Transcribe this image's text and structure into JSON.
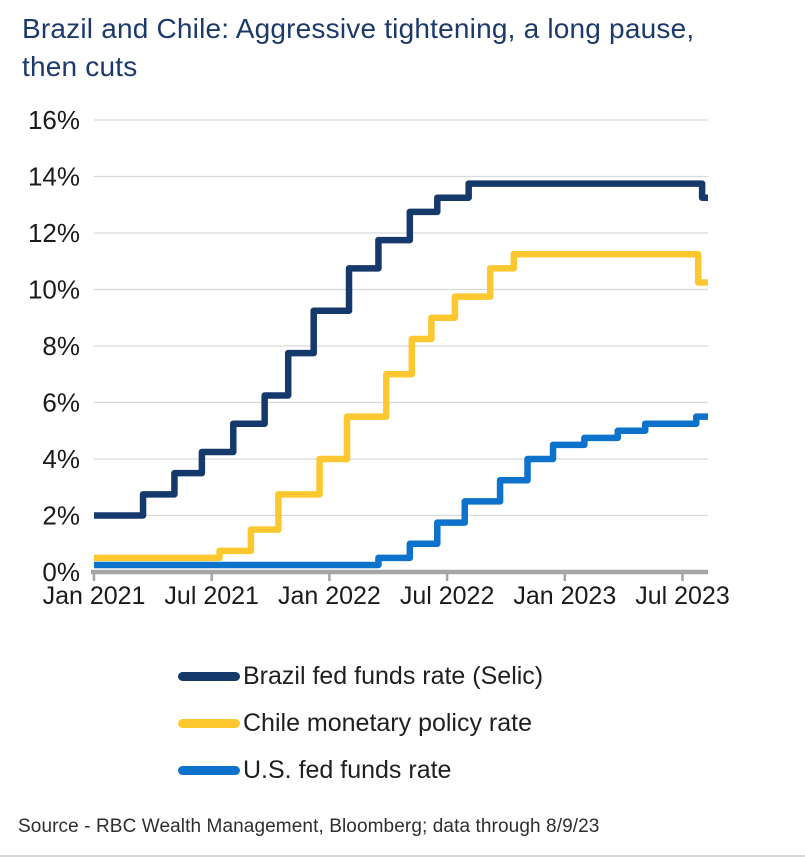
{
  "header": {
    "title_line1": "Brazil and Chile: Aggressive tightening, a long pause,",
    "title_line2": "then cuts"
  },
  "footer": {
    "source": "Source - RBC Wealth Management, Bloomberg; data through 8/9/23"
  },
  "colors": {
    "title_text": "#1B3A6B",
    "brazil_line": "#15396B",
    "chile_line": "#FDC82F",
    "us_line": "#0D72CC",
    "gridline": "#D9D9D9",
    "axis": "#A6A6A6",
    "tick_text": "#1A1A1A",
    "legend_text": "#1F1F1F",
    "source_text": "#2E2E2E"
  },
  "chart_data": {
    "type": "line",
    "line_style": "step-after",
    "title": "Brazil and Chile: Aggressive tightening, a long pause, then cuts",
    "grid": true,
    "legend_position": "bottom-left",
    "x_axis": {
      "unit": "months since Jan 2021",
      "min": 0,
      "max": 31.3,
      "ticks": [
        {
          "t": 0,
          "label": "Jan 2021"
        },
        {
          "t": 6,
          "label": "Jul 2021"
        },
        {
          "t": 12,
          "label": "Jan 2022"
        },
        {
          "t": 18,
          "label": "Jul 2022"
        },
        {
          "t": 24,
          "label": "Jan 2023"
        },
        {
          "t": 30,
          "label": "Jul 2023"
        }
      ]
    },
    "y_axis": {
      "min": 0,
      "max": 16,
      "tick_step": 2,
      "suffix": "%"
    },
    "series": [
      {
        "name": "Brazil fed funds rate (Selic)",
        "color": "#15396B",
        "points": [
          [
            0,
            2.0
          ],
          [
            2.5,
            2.75
          ],
          [
            4.1,
            3.5
          ],
          [
            5.5,
            4.25
          ],
          [
            7.1,
            5.25
          ],
          [
            8.7,
            6.25
          ],
          [
            9.9,
            7.75
          ],
          [
            11.2,
            9.25
          ],
          [
            13.0,
            10.75
          ],
          [
            14.5,
            11.75
          ],
          [
            16.1,
            12.75
          ],
          [
            17.5,
            13.25
          ],
          [
            19.1,
            13.75
          ],
          [
            31.0,
            13.25
          ]
        ]
      },
      {
        "name": "Chile monetary policy rate",
        "color": "#FDC82F",
        "points": [
          [
            0,
            0.5
          ],
          [
            6.4,
            0.75
          ],
          [
            8.0,
            1.5
          ],
          [
            9.4,
            2.75
          ],
          [
            11.5,
            4.0
          ],
          [
            12.9,
            5.5
          ],
          [
            14.9,
            7.0
          ],
          [
            16.2,
            8.25
          ],
          [
            17.2,
            9.0
          ],
          [
            18.4,
            9.75
          ],
          [
            20.2,
            10.75
          ],
          [
            21.4,
            11.25
          ],
          [
            30.8,
            10.25
          ]
        ]
      },
      {
        "name": "U.S. fed funds rate",
        "color": "#0D72CC",
        "points": [
          [
            0,
            0.25
          ],
          [
            14.5,
            0.5
          ],
          [
            16.1,
            1.0
          ],
          [
            17.5,
            1.75
          ],
          [
            18.9,
            2.5
          ],
          [
            20.7,
            3.25
          ],
          [
            22.1,
            4.0
          ],
          [
            23.4,
            4.5
          ],
          [
            25.0,
            4.75
          ],
          [
            26.7,
            5.0
          ],
          [
            28.1,
            5.25
          ],
          [
            30.7,
            5.5
          ]
        ]
      }
    ]
  }
}
